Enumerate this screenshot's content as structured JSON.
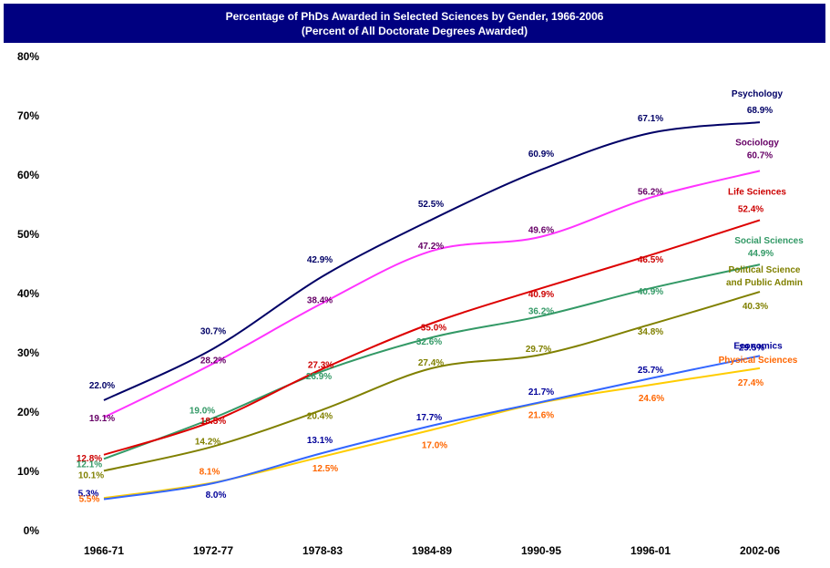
{
  "chart_data": {
    "type": "line",
    "title": "Percentage of PhDs Awarded in Selected Sciences by Gender, 1966-2006",
    "subtitle": "(Percent of All Doctorate Degrees Awarded)",
    "xlabel": "",
    "ylabel": "",
    "categories": [
      "1966-71",
      "1972-77",
      "1978-83",
      "1984-89",
      "1990-95",
      "1996-01",
      "2002-06"
    ],
    "ylim": [
      0,
      80
    ],
    "yticks": [
      0,
      10,
      20,
      30,
      40,
      50,
      60,
      70,
      80
    ],
    "ytick_labels": [
      "0%",
      "10%",
      "20%",
      "30%",
      "40%",
      "50%",
      "60%",
      "70%",
      "80%"
    ],
    "grid": false,
    "legend": "inline labels at right end of each line",
    "series": [
      {
        "name": "Psychology",
        "color": "#000066",
        "label_color": "#000066",
        "values": [
          22.0,
          30.7,
          42.9,
          52.5,
          60.9,
          67.1,
          68.9
        ],
        "labels": [
          "22.0%",
          "30.7%",
          "42.9%",
          "52.5%",
          "60.9%",
          "67.1%",
          "68.9%"
        ]
      },
      {
        "name": "Sociology",
        "color": "#ff33ff",
        "label_color": "#660066",
        "values": [
          19.1,
          28.2,
          38.4,
          47.2,
          49.6,
          56.2,
          60.7
        ],
        "labels": [
          "19.1%",
          "28.2%",
          "38.4%",
          "47.2%",
          "49.6%",
          "56.2%",
          "60.7%"
        ]
      },
      {
        "name": "Life Sciences",
        "color": "#dd0000",
        "label_color": "#cc0000",
        "values": [
          12.8,
          18.5,
          27.3,
          35.0,
          40.9,
          46.5,
          52.4
        ],
        "labels": [
          "12.8%",
          "18.5%",
          "27.3%",
          "35.0%",
          "40.9%",
          "46.5%",
          "52.4%"
        ]
      },
      {
        "name": "Social Sciences",
        "color": "#339966",
        "label_color": "#339966",
        "values": [
          12.1,
          19.0,
          26.9,
          32.6,
          36.2,
          40.9,
          44.9
        ],
        "labels": [
          "12.1%",
          "19.0%",
          "26.9%",
          "32.6%",
          "36.2%",
          "40.9%",
          "44.9%"
        ]
      },
      {
        "name": "Political Science\nand Public Admin",
        "color": "#808000",
        "label_color": "#808000",
        "values": [
          10.1,
          14.2,
          20.4,
          27.4,
          29.7,
          34.8,
          40.3
        ],
        "labels": [
          "10.1%",
          "14.2%",
          "20.4%",
          "27.4%",
          "29.7%",
          "34.8%",
          "40.3%"
        ]
      },
      {
        "name": "Economics",
        "color": "#3366ff",
        "label_color": "#000099",
        "values": [
          5.3,
          8.0,
          13.1,
          17.7,
          21.7,
          25.7,
          29.5
        ],
        "labels": [
          "5.3%",
          "8.0%",
          "13.1%",
          "17.7%",
          "21.7%",
          "25.7%",
          "29.5%"
        ]
      },
      {
        "name": "Physical Sciences",
        "color": "#ffcc00",
        "label_color": "#ff6600",
        "values": [
          5.5,
          8.1,
          12.5,
          17.0,
          21.6,
          24.6,
          27.4
        ],
        "labels": [
          "5.5%",
          "8.1%",
          "12.5%",
          "17.0%",
          "21.6%",
          "24.6%",
          "27.4%"
        ]
      }
    ]
  }
}
